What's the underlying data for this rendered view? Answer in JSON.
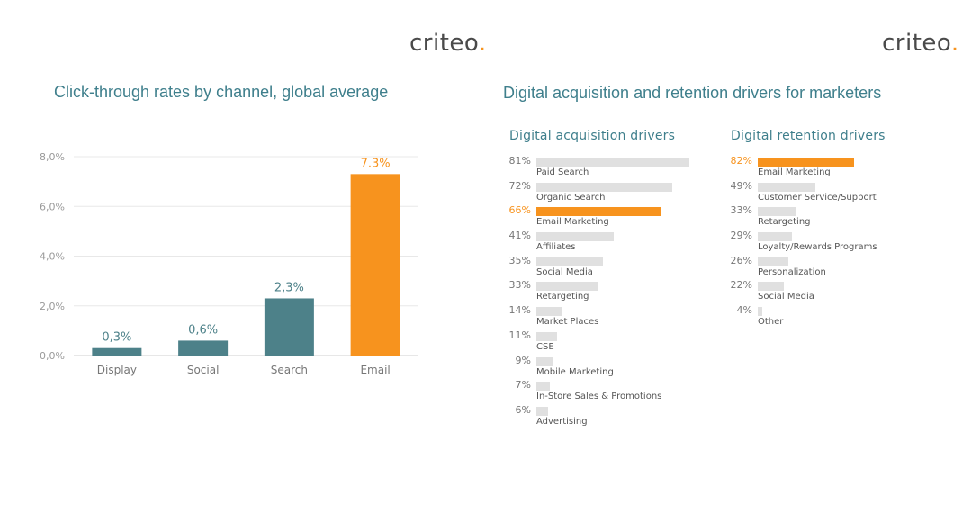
{
  "logos": {
    "left": {
      "text": "criteo",
      "mark": "."
    },
    "right": {
      "text": "criteo",
      "mark": "."
    }
  },
  "left_panel": {
    "title": "Click-through rates by channel, global average"
  },
  "right_panel": {
    "title": "Digital acquisition and retention drivers for marketers",
    "acquisition_title": "Digital acquisition drivers",
    "retention_title": "Digital retention drivers"
  },
  "colors": {
    "teal": "#4d8189",
    "orange": "#f7931e",
    "grey": "#e0e0e0",
    "title": "#3f7f8c"
  },
  "chart_data": [
    {
      "type": "bar",
      "title": "Click-through rates by channel, global average",
      "categories": [
        "Display",
        "Social",
        "Search",
        "Email"
      ],
      "values": [
        0.3,
        0.6,
        2.3,
        7.3
      ],
      "value_labels": [
        "0,3%",
        "0,6%",
        "2,3%",
        "7.3%"
      ],
      "highlight": [
        "#4d8189",
        "#4d8189",
        "#4d8189",
        "#f7931e"
      ],
      "ylim": [
        0,
        8
      ],
      "yticks": [
        0,
        2,
        4,
        6,
        8
      ],
      "ytick_labels": [
        "0,0%",
        "2,0%",
        "4,0%",
        "6,0%",
        "8,0%"
      ],
      "grid": true,
      "xlabel": "",
      "ylabel": ""
    },
    {
      "type": "bar",
      "orientation": "horizontal",
      "title": "Digital acquisition drivers",
      "xlim": [
        0,
        100
      ],
      "items": [
        {
          "label": "Paid Search",
          "value": 81,
          "value_label": "81%"
        },
        {
          "label": "Organic Search",
          "value": 72,
          "value_label": "72%"
        },
        {
          "label": "Email Marketing",
          "value": 66,
          "value_label": "66%",
          "highlight": true
        },
        {
          "label": "Affiliates",
          "value": 41,
          "value_label": "41%"
        },
        {
          "label": "Social Media",
          "value": 35,
          "value_label": "35%"
        },
        {
          "label": "Retargeting",
          "value": 33,
          "value_label": "33%"
        },
        {
          "label": "Market Places",
          "value": 14,
          "value_label": "14%"
        },
        {
          "label": "CSE",
          "value": 11,
          "value_label": "11%"
        },
        {
          "label": "Mobile Marketing",
          "value": 9,
          "value_label": "9%"
        },
        {
          "label": "In-Store Sales & Promotions",
          "value": 7,
          "value_label": "7%"
        },
        {
          "label": "Advertising",
          "value": 6,
          "value_label": "6%"
        }
      ]
    },
    {
      "type": "bar",
      "orientation": "horizontal",
      "title": "Digital retention drivers",
      "xlim": [
        0,
        100
      ],
      "items": [
        {
          "label": "Email Marketing",
          "value": 82,
          "value_label": "82%",
          "highlight": true
        },
        {
          "label": "Customer Service/Support",
          "value": 49,
          "value_label": "49%"
        },
        {
          "label": "Retargeting",
          "value": 33,
          "value_label": "33%"
        },
        {
          "label": "Loyalty/Rewards Programs",
          "value": 29,
          "value_label": "29%"
        },
        {
          "label": "Personalization",
          "value": 26,
          "value_label": "26%"
        },
        {
          "label": "Social Media",
          "value": 22,
          "value_label": "22%"
        },
        {
          "label": "Other",
          "value": 4,
          "value_label": "4%"
        }
      ]
    }
  ]
}
